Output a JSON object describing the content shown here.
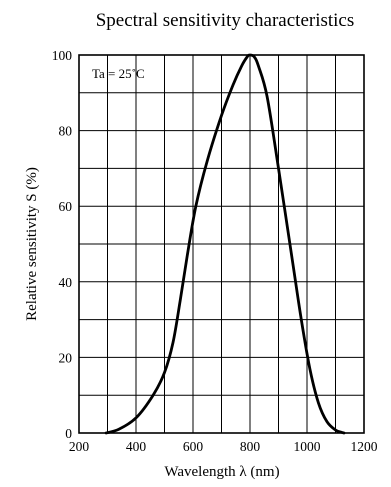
{
  "chart_data": {
    "type": "line",
    "title": "Spectral sensitivity characteristics",
    "xlabel": "Wavelength   λ  (nm)",
    "ylabel": "Relative sensitivity    S  (%)",
    "annotation": "Ta = 25˚C",
    "xlim": [
      200,
      1200
    ],
    "ylim": [
      0,
      100
    ],
    "x_ticks": [
      200,
      400,
      600,
      800,
      1000,
      1200
    ],
    "y_ticks": [
      0,
      20,
      40,
      60,
      80,
      100
    ],
    "x_gridlines_step": 100,
    "y_gridlines_step": 10,
    "grid": true,
    "series": [
      {
        "x": [
          295,
          340,
          400,
          460,
          500,
          530,
          555,
          580,
          610,
          650,
          700,
          740,
          770,
          790,
          800,
          815,
          830,
          860,
          900,
          950,
          980,
          1010,
          1040,
          1070,
          1100,
          1120,
          1130
        ],
        "y": [
          0,
          1,
          4,
          10,
          16,
          24,
          35,
          47,
          60,
          72,
          84,
          92,
          97,
          99.5,
          100,
          99.5,
          97,
          89,
          70,
          45,
          30,
          17,
          8,
          3,
          0.8,
          0.2,
          0
        ]
      }
    ]
  }
}
